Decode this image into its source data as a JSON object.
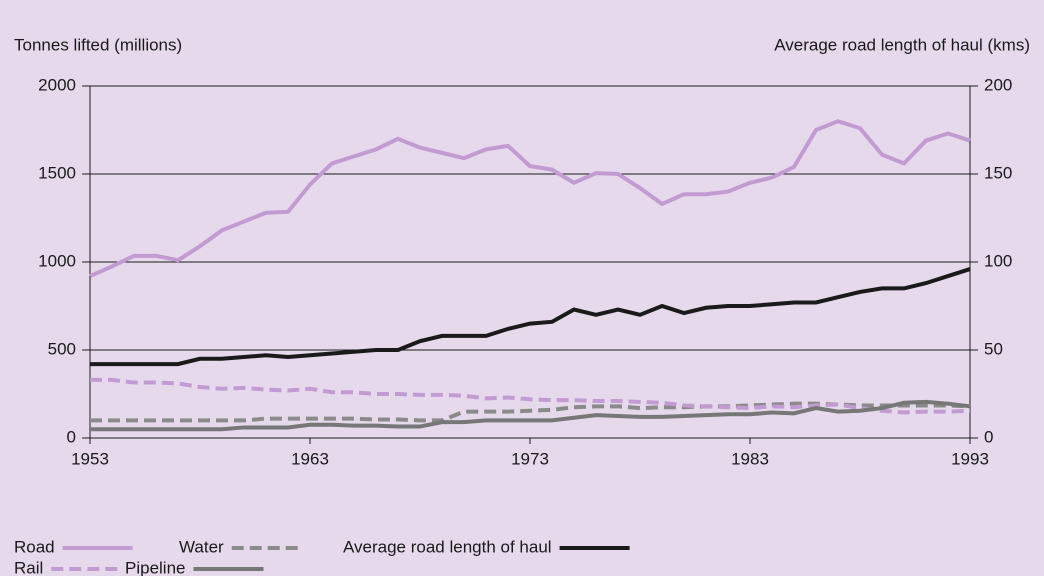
{
  "chart_data": {
    "type": "line",
    "y_label": "Tonnes lifted (millions)",
    "y2_label": "Average road length of haul (kms)",
    "x": [
      1953,
      1954,
      1955,
      1956,
      1957,
      1958,
      1959,
      1960,
      1961,
      1962,
      1963,
      1964,
      1965,
      1966,
      1967,
      1968,
      1969,
      1970,
      1971,
      1972,
      1973,
      1974,
      1975,
      1976,
      1977,
      1978,
      1979,
      1980,
      1981,
      1982,
      1983,
      1984,
      1985,
      1986,
      1987,
      1988,
      1989,
      1990,
      1991,
      1992,
      1993
    ],
    "xlim": [
      1953,
      1993
    ],
    "xticks": [
      1953,
      1963,
      1973,
      1983,
      1993
    ],
    "ylim": [
      0,
      2000
    ],
    "yticks": [
      0,
      500,
      1000,
      1500,
      2000
    ],
    "y2lim": [
      0,
      200
    ],
    "y2ticks": [
      0,
      50,
      100,
      150,
      200
    ],
    "grid": true,
    "series": [
      {
        "name": "Road",
        "color": "#c39bd3",
        "dash": false,
        "values": [
          920,
          975,
          1035,
          1035,
          1010,
          1090,
          1180,
          1230,
          1280,
          1285,
          1440,
          1560,
          1600,
          1640,
          1700,
          1650,
          1620,
          1590,
          1640,
          1660,
          1545,
          1525,
          1450,
          1505,
          1500,
          1420,
          1330,
          1385,
          1385,
          1400,
          1450,
          1480,
          1540,
          1750,
          1800,
          1760,
          1610,
          1560,
          1690,
          1730,
          1690
        ]
      },
      {
        "name": "Water",
        "color": "#8a8a8a",
        "dash": true,
        "values": [
          100,
          100,
          100,
          100,
          100,
          100,
          100,
          100,
          110,
          110,
          110,
          110,
          110,
          105,
          105,
          100,
          100,
          150,
          150,
          150,
          155,
          160,
          175,
          180,
          180,
          170,
          175,
          175,
          180,
          180,
          185,
          190,
          195,
          195,
          190,
          185,
          185,
          185,
          185,
          185,
          180
        ]
      },
      {
        "name": "Average road length of haul",
        "color": "#1a1a1a",
        "dash": false,
        "axis": "y2",
        "values": [
          42,
          42,
          42,
          42,
          42,
          45,
          45,
          46,
          47,
          46,
          47,
          48,
          49,
          50,
          50,
          55,
          58,
          58,
          58,
          62,
          65,
          66,
          73,
          70,
          73,
          70,
          75,
          71,
          74,
          75,
          75,
          76,
          77,
          77,
          80,
          83,
          85,
          85,
          88,
          92,
          96
        ]
      },
      {
        "name": "Rail",
        "color": "#c39bd3",
        "dash": true,
        "values": [
          330,
          330,
          315,
          315,
          310,
          290,
          280,
          285,
          275,
          270,
          280,
          260,
          260,
          250,
          250,
          245,
          245,
          240,
          225,
          230,
          220,
          215,
          215,
          210,
          210,
          205,
          200,
          185,
          180,
          175,
          170,
          180,
          175,
          185,
          190,
          170,
          155,
          145,
          150,
          150,
          155
        ]
      },
      {
        "name": "Pipeline",
        "color": "#777777",
        "dash": false,
        "values": [
          50,
          50,
          50,
          50,
          50,
          50,
          50,
          60,
          60,
          60,
          75,
          75,
          70,
          70,
          65,
          65,
          90,
          90,
          100,
          100,
          100,
          100,
          115,
          130,
          125,
          120,
          120,
          125,
          130,
          135,
          135,
          145,
          140,
          170,
          150,
          155,
          170,
          200,
          205,
          195,
          180
        ]
      }
    ]
  }
}
